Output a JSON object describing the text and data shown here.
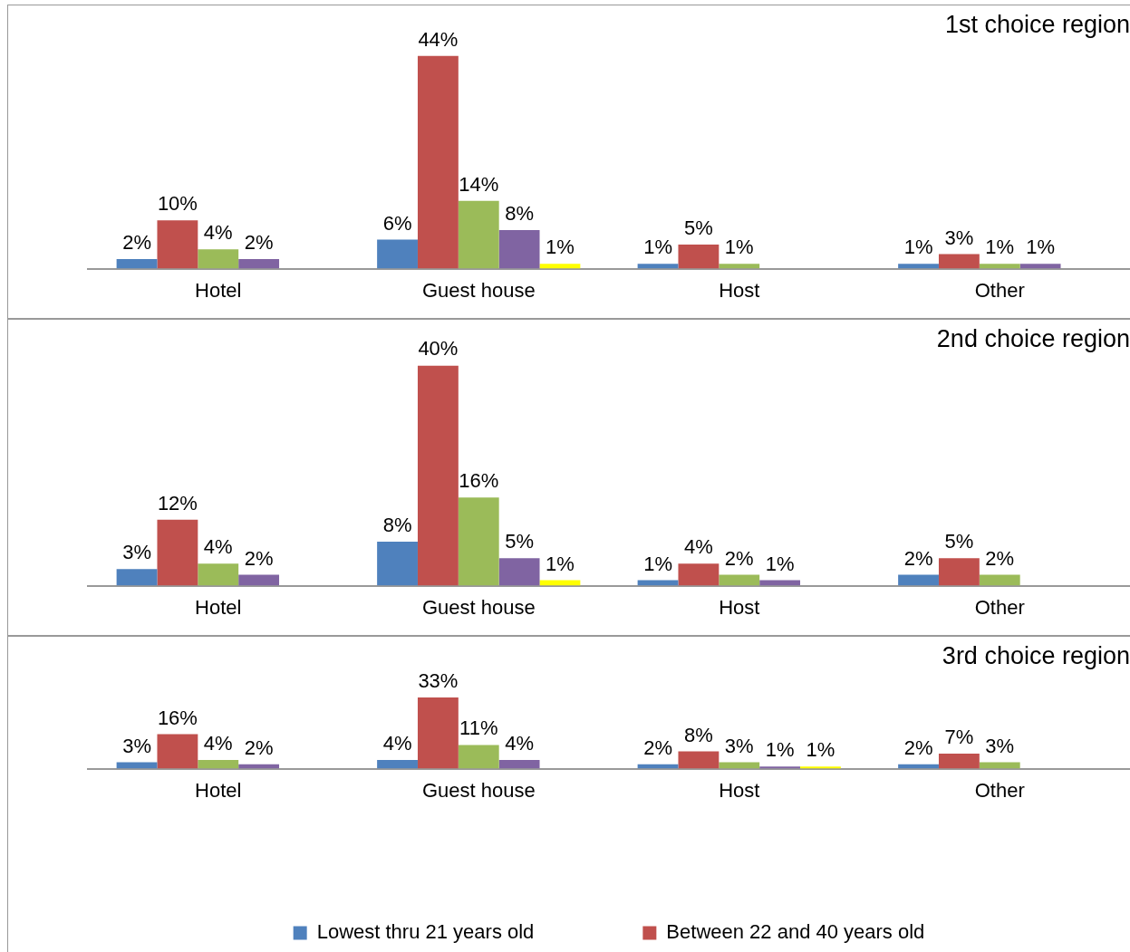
{
  "chart_data": [
    {
      "type": "bar",
      "title": "1st choice region",
      "categories": [
        "Hotel",
        "Guest house",
        "Host",
        "Other"
      ],
      "legend": false,
      "data_labels": true,
      "series": [
        {
          "color": "#4f81bd",
          "values": [
            2,
            6,
            1,
            1
          ],
          "value_labels": [
            "2%",
            "6%",
            "1%",
            "1%"
          ]
        },
        {
          "color": "#c0504d",
          "values": [
            10,
            44,
            5,
            3
          ],
          "value_labels": [
            "10%",
            "44%",
            "5%",
            "3%"
          ]
        },
        {
          "color": "#9bbb59",
          "values": [
            4,
            14,
            1,
            1
          ],
          "value_labels": [
            "4%",
            "14%",
            "1%",
            "1%"
          ]
        },
        {
          "color": "#8064a2",
          "values": [
            2,
            8,
            null,
            1
          ],
          "value_labels": [
            "2%",
            "8%",
            null,
            "1%"
          ]
        },
        {
          "color": "#ffff00",
          "values": [
            null,
            1,
            null,
            null
          ],
          "value_labels": [
            null,
            "1%",
            null,
            null
          ]
        }
      ]
    },
    {
      "type": "bar",
      "title": "2nd choice region",
      "categories": [
        "Hotel",
        "Guest house",
        "Host",
        "Other"
      ],
      "legend": false,
      "data_labels": true,
      "series": [
        {
          "color": "#4f81bd",
          "values": [
            3,
            8,
            1,
            2
          ],
          "value_labels": [
            "3%",
            "8%",
            "1%",
            "2%"
          ]
        },
        {
          "color": "#c0504d",
          "values": [
            12,
            40,
            4,
            5
          ],
          "value_labels": [
            "12%",
            "40%",
            "4%",
            "5%"
          ]
        },
        {
          "color": "#9bbb59",
          "values": [
            4,
            16,
            2,
            2
          ],
          "value_labels": [
            "4%",
            "16%",
            "2%",
            "2%"
          ]
        },
        {
          "color": "#8064a2",
          "values": [
            2,
            5,
            1,
            null
          ],
          "value_labels": [
            "2%",
            "5%",
            "1%",
            null
          ]
        },
        {
          "color": "#ffff00",
          "values": [
            null,
            1,
            null,
            null
          ],
          "value_labels": [
            null,
            "1%",
            null,
            null
          ]
        }
      ]
    },
    {
      "type": "bar",
      "title": "3rd choice region",
      "categories": [
        "Hotel",
        "Guest house",
        "Host",
        "Other"
      ],
      "legend": "bottom",
      "data_labels": true,
      "series": [
        {
          "name": "Lowest thru 21 years old",
          "color": "#4f81bd",
          "values": [
            3,
            4,
            2,
            2
          ],
          "value_labels": [
            "3%",
            "4%",
            "2%",
            "2%"
          ]
        },
        {
          "name": "Between 22 and 40 years old",
          "color": "#c0504d",
          "values": [
            16,
            33,
            8,
            7
          ],
          "value_labels": [
            "16%",
            "33%",
            "8%",
            "7%"
          ]
        },
        {
          "color": "#9bbb59",
          "values": [
            4,
            11,
            3,
            3
          ],
          "value_labels": [
            "4%",
            "11%",
            "3%",
            "3%"
          ]
        },
        {
          "color": "#8064a2",
          "values": [
            2,
            4,
            1,
            null
          ],
          "value_labels": [
            "2%",
            "4%",
            "1%",
            null
          ]
        },
        {
          "color": "#ffff00",
          "values": [
            null,
            null,
            1,
            null
          ],
          "value_labels": [
            null,
            null,
            "1%",
            null
          ]
        }
      ]
    }
  ]
}
